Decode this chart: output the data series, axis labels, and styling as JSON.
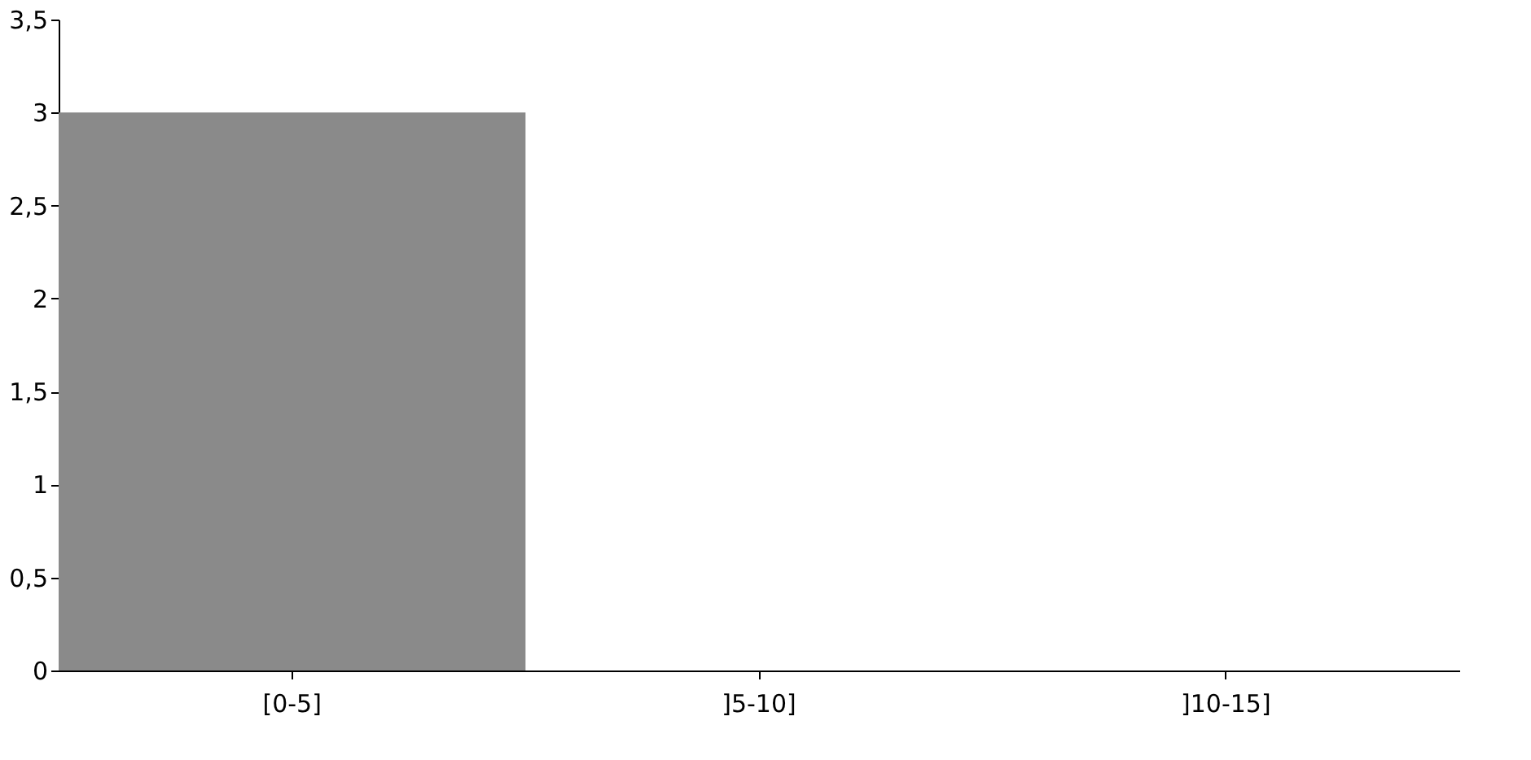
{
  "chart_data": {
    "type": "bar",
    "categories": [
      "[0-5]",
      "]5-10]",
      "]10-15]"
    ],
    "values": [
      3,
      0,
      0
    ],
    "color": "#8a8a8a",
    "ylim": [
      0,
      3.5
    ],
    "yticks": [
      0,
      {
        "value": 0.5,
        "label": "0,5"
      },
      1,
      {
        "value": 1.5,
        "label": "1,5"
      },
      2,
      {
        "value": 2.5,
        "label": "2,5"
      },
      3,
      {
        "value": 3.5,
        "label": "3,5"
      }
    ],
    "grid": false
  }
}
